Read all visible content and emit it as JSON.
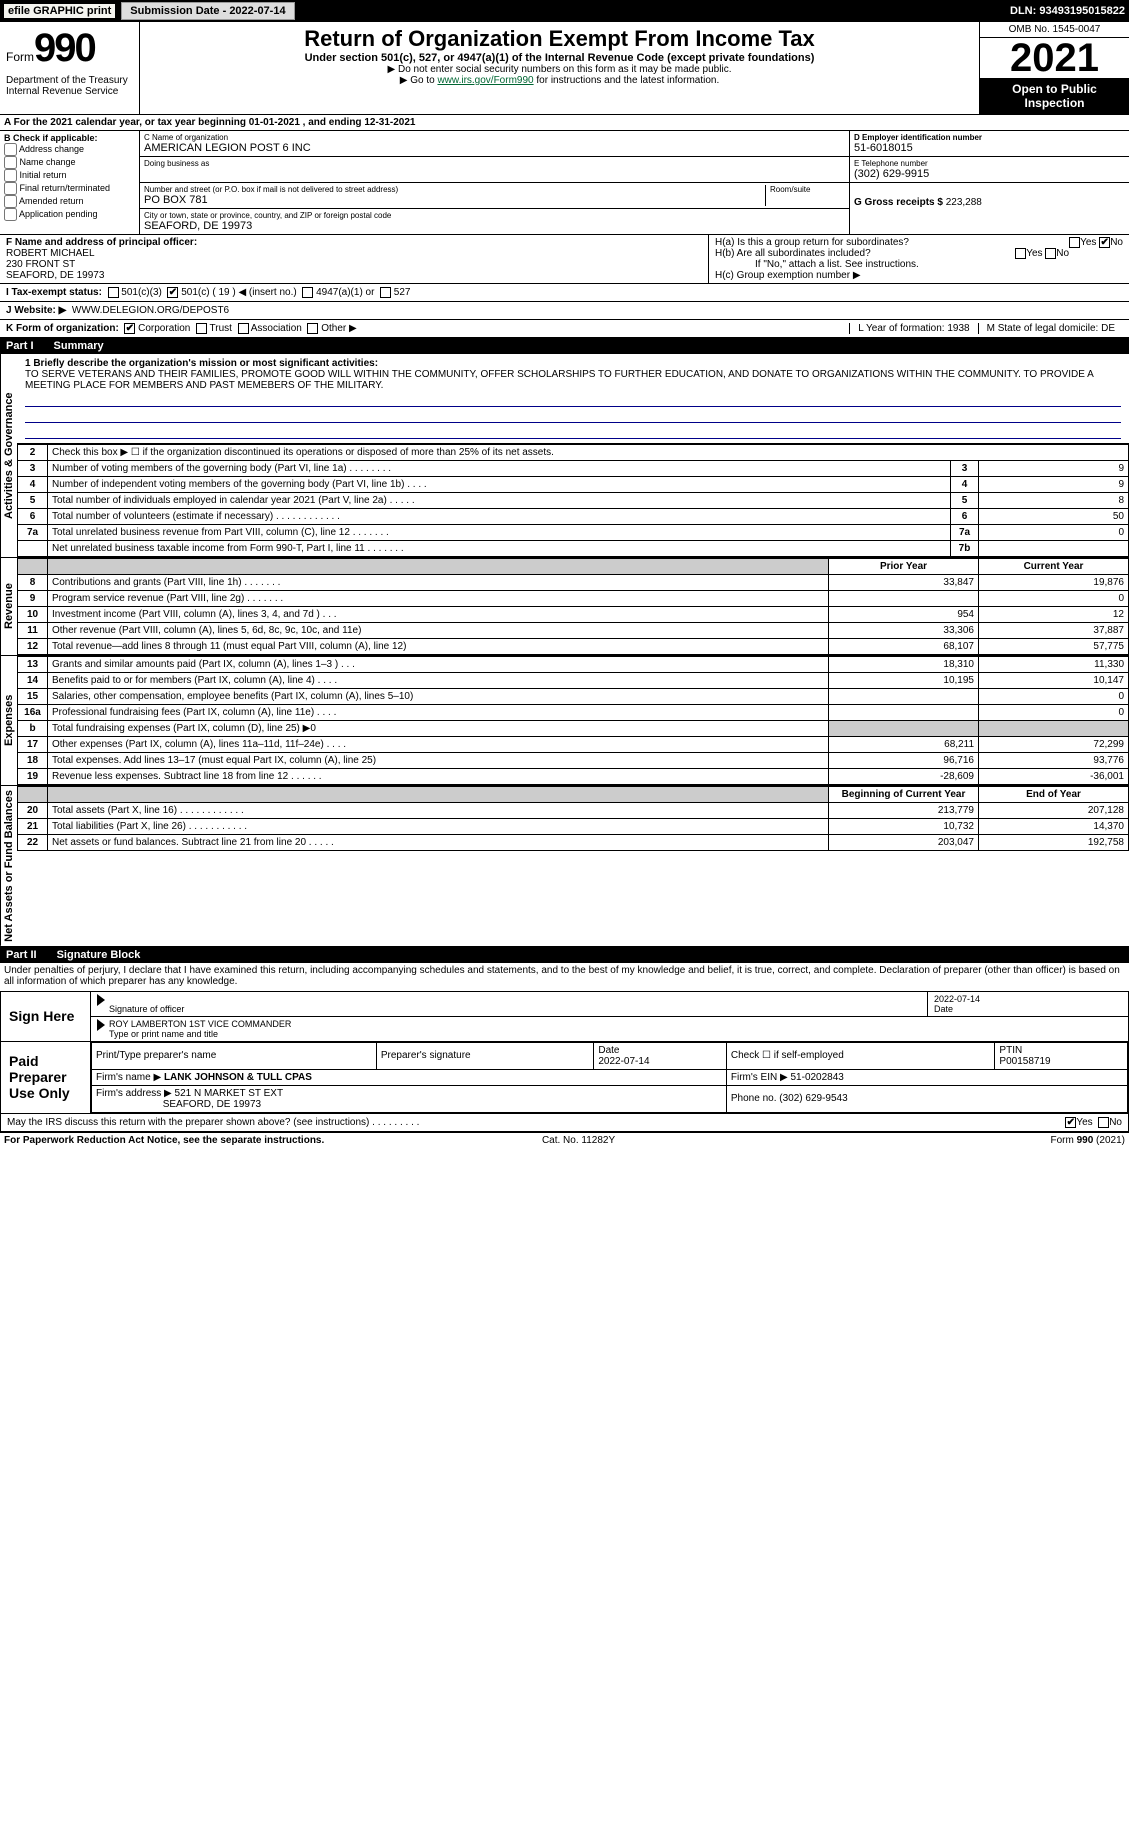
{
  "topbar": {
    "efile": "efile GRAPHIC print",
    "subdate_lbl": "Submission Date - 2022-07-14",
    "dln": "DLN: 93493195015822"
  },
  "header": {
    "form": "Form",
    "num": "990",
    "dept": "Department of the Treasury\nInternal Revenue Service",
    "title": "Return of Organization Exempt From Income Tax",
    "sub": "Under section 501(c), 527, or 4947(a)(1) of the Internal Revenue Code (except private foundations)",
    "note1": "▶ Do not enter social security numbers on this form as it may be made public.",
    "note2_pre": "▶ Go to ",
    "note2_link": "www.irs.gov/Form990",
    "note2_post": " for instructions and the latest information.",
    "omb": "OMB No. 1545-0047",
    "year": "2021",
    "open": "Open to Public Inspection"
  },
  "A": {
    "text": "A For the 2021 calendar year, or tax year beginning 01-01-2021    , and ending 12-31-2021"
  },
  "B": {
    "hdr": "B Check if applicable:",
    "opts": [
      "Address change",
      "Name change",
      "Initial return",
      "Final return/terminated",
      "Amended return",
      "Application pending"
    ],
    "C_lbl": "C Name of organization",
    "C_val": "AMERICAN LEGION POST 6 INC",
    "dba_lbl": "Doing business as",
    "street_lbl": "Number and street (or P.O. box if mail is not delivered to street address)",
    "street_val": "PO BOX 781",
    "room_lbl": "Room/suite",
    "city_lbl": "City or town, state or province, country, and ZIP or foreign postal code",
    "city_val": "SEAFORD, DE  19973",
    "D_lbl": "D Employer identification number",
    "D_val": "51-6018015",
    "E_lbl": "E Telephone number",
    "E_val": "(302) 629-9915",
    "G_lbl": "G Gross receipts $",
    "G_val": "223,288"
  },
  "F": {
    "lbl": "F Name and address of principal officer:",
    "name": "ROBERT MICHAEL",
    "addr1": "230 FRONT ST",
    "addr2": "SEAFORD, DE  19973"
  },
  "H": {
    "a": "H(a)  Is this a group return for subordinates?",
    "b": "H(b)  Are all subordinates included?",
    "b_note": "If \"No,\" attach a list. See instructions.",
    "c": "H(c)  Group exemption number ▶",
    "yes": "Yes",
    "no": "No"
  },
  "I": {
    "lbl": "I   Tax-exempt status:",
    "o1": "501(c)(3)",
    "o2": "501(c) ( 19 ) ◀ (insert no.)",
    "o3": "4947(a)(1) or",
    "o4": "527"
  },
  "J": {
    "lbl": "J   Website: ▶",
    "val": "WWW.DELEGION.ORG/DEPOST6"
  },
  "K": {
    "lbl": "K Form of organization:",
    "opts": [
      "Corporation",
      "Trust",
      "Association",
      "Other ▶"
    ],
    "L": "L Year of formation: 1938",
    "M": "M State of legal domicile: DE"
  },
  "part1": {
    "tag": "Part I",
    "title": "Summary"
  },
  "mission": {
    "lbl": "1 Briefly describe the organization's mission or most significant activities:",
    "txt": "TO SERVE VETERANS AND THEIR FAMILIES, PROMOTE GOOD WILL WITHIN THE COMMUNITY, OFFER SCHOLARSHIPS TO FURTHER EDUCATION, AND DONATE TO ORGANIZATIONS WITHIN THE COMMUNITY. TO PROVIDE A MEETING PLACE FOR MEMBERS AND PAST MEMEBERS OF THE MILITARY."
  },
  "sumA": {
    "r2": "Check this box ▶ ☐ if the organization discontinued its operations or disposed of more than 25% of its net assets.",
    "rows": [
      {
        "n": "3",
        "t": "Number of voting members of the governing body (Part VI, line 1a)   .    .    .    .    .    .    .    .",
        "b": "3",
        "v": "9"
      },
      {
        "n": "4",
        "t": "Number of independent voting members of the governing body (Part VI, line 1b)  .    .    .    .",
        "b": "4",
        "v": "9"
      },
      {
        "n": "5",
        "t": "Total number of individuals employed in calendar year 2021 (Part V, line 2a)  .    .    .    .    .",
        "b": "5",
        "v": "8"
      },
      {
        "n": "6",
        "t": "Total number of volunteers (estimate if necessary)   .    .    .    .    .    .    .    .    .    .    .    .",
        "b": "6",
        "v": "50"
      },
      {
        "n": "7a",
        "t": "Total unrelated business revenue from Part VIII, column (C), line 12   .    .    .    .    .    .    .",
        "b": "7a",
        "v": "0"
      },
      {
        "n": "",
        "t": "Net unrelated business taxable income from Form 990-T, Part I, line 11  .    .    .    .    .    .    .",
        "b": "7b",
        "v": ""
      }
    ]
  },
  "sumB": {
    "h1": "Prior Year",
    "h2": "Current Year",
    "groups": [
      {
        "tab": "Revenue",
        "rows": [
          {
            "n": "8",
            "t": "Contributions and grants (Part VIII, line 1h)   .    .    .    .    .    .    .",
            "p": "33,847",
            "c": "19,876"
          },
          {
            "n": "9",
            "t": "Program service revenue (Part VIII, line 2g)   .    .    .    .    .    .    .",
            "p": "",
            "c": "0"
          },
          {
            "n": "10",
            "t": "Investment income (Part VIII, column (A), lines 3, 4, and 7d )   .    .    .",
            "p": "954",
            "c": "12"
          },
          {
            "n": "11",
            "t": "Other revenue (Part VIII, column (A), lines 5, 6d, 8c, 9c, 10c, and 11e)",
            "p": "33,306",
            "c": "37,887"
          },
          {
            "n": "12",
            "t": "Total revenue—add lines 8 through 11 (must equal Part VIII, column (A), line 12)",
            "p": "68,107",
            "c": "57,775"
          }
        ]
      },
      {
        "tab": "Expenses",
        "rows": [
          {
            "n": "13",
            "t": "Grants and similar amounts paid (Part IX, column (A), lines 1–3 )   .    .    .",
            "p": "18,310",
            "c": "11,330"
          },
          {
            "n": "14",
            "t": "Benefits paid to or for members (Part IX, column (A), line 4)   .    .    .    .",
            "p": "10,195",
            "c": "10,147"
          },
          {
            "n": "15",
            "t": "Salaries, other compensation, employee benefits (Part IX, column (A), lines 5–10)",
            "p": "",
            "c": "0"
          },
          {
            "n": "16a",
            "t": "Professional fundraising fees (Part IX, column (A), line 11e)   .    .    .    .",
            "p": "",
            "c": "0"
          },
          {
            "n": "b",
            "t": "Total fundraising expenses (Part IX, column (D), line 25) ▶0",
            "p": "shade",
            "c": "shade"
          },
          {
            "n": "17",
            "t": "Other expenses (Part IX, column (A), lines 11a–11d, 11f–24e)   .    .    .    .",
            "p": "68,211",
            "c": "72,299"
          },
          {
            "n": "18",
            "t": "Total expenses. Add lines 13–17 (must equal Part IX, column (A), line 25)",
            "p": "96,716",
            "c": "93,776"
          },
          {
            "n": "19",
            "t": "Revenue less expenses. Subtract line 18 from line 12   .    .    .    .    .    .",
            "p": "-28,609",
            "c": "-36,001"
          }
        ]
      },
      {
        "tab": "Net Assets or Fund Balances",
        "h1": "Beginning of Current Year",
        "h2": "End of Year",
        "rows": [
          {
            "n": "20",
            "t": "Total assets (Part X, line 16)   .    .    .    .    .    .    .    .    .    .    .    .",
            "p": "213,779",
            "c": "207,128"
          },
          {
            "n": "21",
            "t": "Total liabilities (Part X, line 26)   .    .    .    .    .    .    .    .    .    .    .",
            "p": "10,732",
            "c": "14,370"
          },
          {
            "n": "22",
            "t": "Net assets or fund balances. Subtract line 21 from line 20   .    .    .    .    .",
            "p": "203,047",
            "c": "192,758"
          }
        ]
      }
    ]
  },
  "part2": {
    "tag": "Part II",
    "title": "Signature Block"
  },
  "declare": "Under penalties of perjury, I declare that I have examined this return, including accompanying schedules and statements, and to the best of my knowledge and belief, it is true, correct, and complete. Declaration of preparer (other than officer) is based on all information of which preparer has any knowledge.",
  "sign": {
    "lbl": "Sign Here",
    "sig": "Signature of officer",
    "date": "2022-07-14",
    "date_lbl": "Date",
    "name": "ROY LAMBERTON  1ST VICE COMMANDER",
    "name_lbl": "Type or print name and title"
  },
  "prep": {
    "lbl": "Paid Preparer Use Only",
    "h1": "Print/Type preparer's name",
    "h2": "Preparer's signature",
    "h3": "Date",
    "h3v": "2022-07-14",
    "h4": "Check ☐ if self-employed",
    "h5": "PTIN",
    "h5v": "P00158719",
    "firm_lbl": "Firm's name    ▶",
    "firm": "LANK JOHNSON & TULL CPAS",
    "ein_lbl": "Firm's EIN ▶",
    "ein": "51-0202843",
    "addr_lbl": "Firm's address ▶",
    "addr1": "521 N MARKET ST EXT",
    "addr2": "SEAFORD, DE  19973",
    "phone_lbl": "Phone no.",
    "phone": "(302) 629-9543"
  },
  "discuss": {
    "t": "May the IRS discuss this return with the preparer shown above? (see instructions)   .    .    .    .    .    .    .    .    .",
    "yes": "Yes",
    "no": "No"
  },
  "footer": {
    "l": "For Paperwork Reduction Act Notice, see the separate instructions.",
    "m": "Cat. No. 11282Y",
    "r": "Form 990 (2021)"
  }
}
